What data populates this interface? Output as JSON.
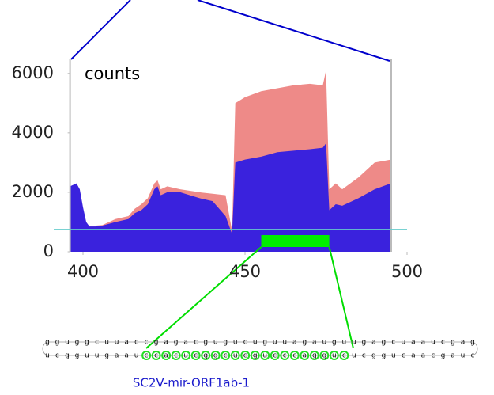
{
  "chart_data": {
    "type": "area",
    "title": "counts",
    "x": [
      396,
      398,
      399,
      400,
      401,
      402,
      404,
      406,
      410,
      414,
      416,
      418,
      420,
      422,
      423,
      424,
      426,
      430,
      436,
      440,
      444,
      446,
      447,
      450,
      455,
      460,
      465,
      470,
      474,
      475,
      476,
      478,
      480,
      485,
      490,
      495
    ],
    "series": [
      {
        "color": "#ee8a88",
        "values": [
          1800,
          1800,
          1600,
          1200,
          950,
          850,
          880,
          900,
          1100,
          1200,
          1450,
          1600,
          1800,
          2300,
          2400,
          2100,
          2200,
          2100,
          2000,
          1950,
          1900,
          700,
          5000,
          5200,
          5400,
          5500,
          5600,
          5650,
          5600,
          6100,
          2100,
          2300,
          2100,
          2500,
          3000,
          3100
        ]
      },
      {
        "color": "#3a22dd",
        "values": [
          2200,
          2300,
          2100,
          1500,
          1000,
          850,
          850,
          880,
          1000,
          1100,
          1300,
          1400,
          1600,
          2100,
          2200,
          1900,
          2000,
          2000,
          1800,
          1700,
          1200,
          600,
          3000,
          3100,
          3200,
          3350,
          3400,
          3450,
          3500,
          3650,
          1400,
          1600,
          1550,
          1800,
          2100,
          2300
        ]
      }
    ],
    "threshold": 750,
    "highlight": [
      455,
      476
    ],
    "xlim": [
      396,
      496
    ],
    "xticks": [
      400,
      450,
      500
    ],
    "ylim": [
      0,
      6500
    ],
    "yticks": [
      0,
      2000,
      4000,
      6000
    ]
  },
  "structure": {
    "label": "SC2V-mir-ORF1ab-1",
    "top": [
      "g",
      "g",
      "u",
      "g",
      "g",
      "c",
      "u",
      "u",
      "a",
      "c",
      "c",
      "g",
      "a",
      "g",
      "a",
      "c",
      "g",
      "u",
      "g",
      "u",
      "c",
      "u",
      "g",
      "u",
      "u",
      "a",
      "g",
      "a",
      "u",
      "g",
      "u",
      "u",
      "g",
      "a",
      "g",
      "c",
      "u",
      "a",
      "a",
      "u",
      "c",
      "g",
      "a",
      "g"
    ],
    "bottom": [
      "u",
      "c",
      "g",
      "g",
      "u",
      "u",
      "g",
      "a",
      "a",
      "u",
      "c",
      "c",
      "a",
      "c",
      "u",
      "c",
      "g",
      "g",
      "c",
      "u",
      "c",
      "g",
      "u",
      "c",
      "c",
      "c",
      "a",
      "g",
      "g",
      "u",
      "c",
      "u",
      "c",
      "g",
      "g",
      "u",
      "c",
      "a",
      "a",
      "c",
      "g",
      "a",
      "u",
      "c"
    ]
  }
}
